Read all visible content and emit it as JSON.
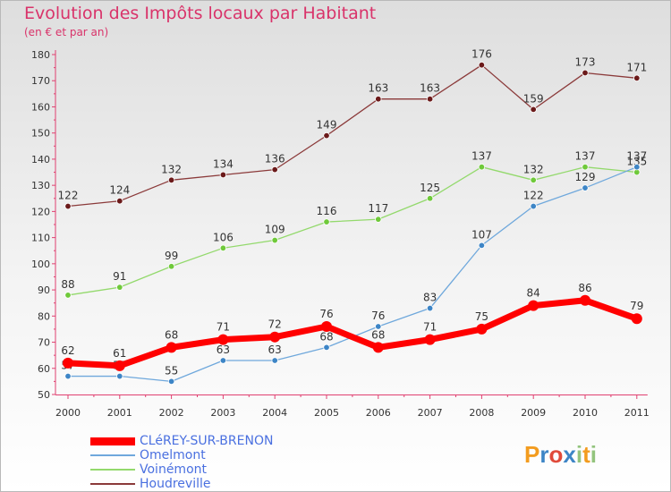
{
  "title": "Evolution des Impôts locaux par Habitant",
  "subtitle": "(en € et par an)",
  "logo_text": "Proxiti",
  "chart_data": {
    "type": "line",
    "title": "Evolution des Impôts locaux par Habitant",
    "subtitle": "(en € et par an)",
    "xlabel": "",
    "ylabel": "",
    "categories": [
      "2000",
      "2001",
      "2002",
      "2003",
      "2004",
      "2005",
      "2006",
      "2007",
      "2008",
      "2009",
      "2010",
      "2011"
    ],
    "ylim": [
      50,
      180
    ],
    "yticks": [
      50,
      60,
      70,
      80,
      90,
      100,
      110,
      120,
      130,
      140,
      150,
      160,
      170,
      180
    ],
    "grid": false,
    "legend_position": "bottom-left",
    "series": [
      {
        "name": "CLéREY-SUR-BRENON",
        "color": "#ff0000",
        "marker_color": "#ff0000",
        "values": [
          62,
          61,
          68,
          71,
          72,
          76,
          68,
          71,
          75,
          84,
          86,
          79
        ]
      },
      {
        "name": "Omelmont",
        "color": "#6fa8dc",
        "marker_color": "#3d85c6",
        "values": [
          57,
          57,
          55,
          63,
          63,
          68,
          76,
          83,
          107,
          122,
          129,
          137
        ]
      },
      {
        "name": "Voinémont",
        "color": "#93d96c",
        "marker_color": "#6fc93a",
        "values": [
          88,
          91,
          99,
          106,
          109,
          116,
          117,
          125,
          137,
          132,
          137,
          135
        ]
      },
      {
        "name": "Houdreville",
        "color": "#8b3a3a",
        "marker_color": "#6b1a1a",
        "values": [
          122,
          124,
          132,
          134,
          136,
          149,
          163,
          163,
          176,
          159,
          173,
          171
        ]
      }
    ]
  }
}
